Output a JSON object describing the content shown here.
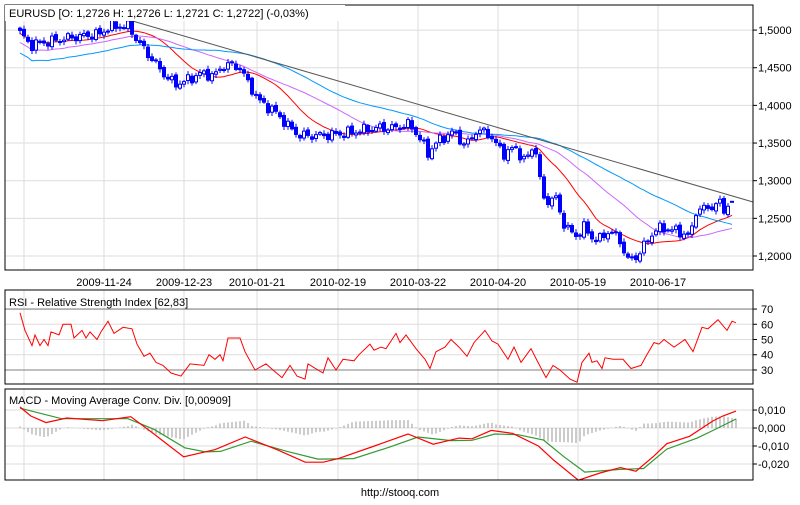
{
  "footer": "http://stooq.com",
  "chart_data": [
    {
      "type": "candlestick",
      "title": "EURUSD [O: 1,2726  H: 1,2726  L: 1,2721  C: 1,2722] (-0,03%)",
      "symbol": "EURUSD",
      "last": {
        "open": 1.2726,
        "high": 1.2726,
        "low": 1.2721,
        "close": 1.2722,
        "change_pct": -0.03
      },
      "ylim": [
        1.1814,
        1.5333
      ],
      "y_ticks": [
        "1,5000",
        "1,4500",
        "1,4000",
        "1,3500",
        "1,3000",
        "1,2500",
        "1,2000"
      ],
      "y_tick_values": [
        1.5,
        1.45,
        1.4,
        1.35,
        1.3,
        1.25,
        1.2
      ],
      "x_ticks": [
        {
          "bar": 21,
          "label": "2009-11-24"
        },
        {
          "bar": 41,
          "label": "2009-12-23"
        },
        {
          "bar": 59.25,
          "label": "2010-01-21"
        },
        {
          "bar": 79.5,
          "label": "2010-02-19"
        },
        {
          "bar": 99.5,
          "label": "2010-03-22"
        },
        {
          "bar": 119.5,
          "label": "2010-04-20"
        },
        {
          "bar": 139.5,
          "label": "2010-05-19"
        },
        {
          "bar": 159.5,
          "label": "2010-06-17"
        }
      ],
      "extra_grid_bars": [
        1
      ],
      "bar_count": 179,
      "close_keypoints": [
        [
          0,
          1.497
        ],
        [
          2.5,
          1.48
        ],
        [
          7.5,
          1.485
        ],
        [
          12.5,
          1.49
        ],
        [
          20,
          1.495
        ],
        [
          22.5,
          1.505
        ],
        [
          27.5,
          1.505
        ],
        [
          28.75,
          1.49
        ],
        [
          32.5,
          1.465
        ],
        [
          36.25,
          1.44
        ],
        [
          38.75,
          1.428
        ],
        [
          41.25,
          1.432
        ],
        [
          45,
          1.442
        ],
        [
          48.75,
          1.44
        ],
        [
          51.25,
          1.455
        ],
        [
          55,
          1.45
        ],
        [
          57,
          1.43
        ],
        [
          60,
          1.405
        ],
        [
          63.75,
          1.392
        ],
        [
          67.5,
          1.37
        ],
        [
          70,
          1.36
        ],
        [
          75,
          1.36
        ],
        [
          80,
          1.362
        ],
        [
          83.75,
          1.365
        ],
        [
          88.75,
          1.37
        ],
        [
          93.75,
          1.37
        ],
        [
          97.5,
          1.375
        ],
        [
          99.5,
          1.36
        ],
        [
          102,
          1.337
        ],
        [
          105,
          1.355
        ],
        [
          108.75,
          1.365
        ],
        [
          111.25,
          1.345
        ],
        [
          113.75,
          1.365
        ],
        [
          116.75,
          1.365
        ],
        [
          118.75,
          1.35
        ],
        [
          121.25,
          1.335
        ],
        [
          123.75,
          1.345
        ],
        [
          126.25,
          1.325
        ],
        [
          128.75,
          1.35
        ],
        [
          130,
          1.3
        ],
        [
          131.25,
          1.27
        ],
        [
          133.75,
          1.28
        ],
        [
          135.75,
          1.245
        ],
        [
          138.75,
          1.225
        ],
        [
          141.25,
          1.24
        ],
        [
          142.5,
          1.225
        ],
        [
          145,
          1.222
        ],
        [
          147.5,
          1.235
        ],
        [
          150,
          1.22
        ],
        [
          152,
          1.195
        ],
        [
          153.75,
          1.197
        ],
        [
          156.25,
          1.215
        ],
        [
          158.75,
          1.235
        ],
        [
          161.25,
          1.237
        ],
        [
          165,
          1.232
        ],
        [
          167.5,
          1.225
        ],
        [
          169,
          1.26
        ],
        [
          172.5,
          1.265
        ],
        [
          175,
          1.27
        ],
        [
          176.25,
          1.26
        ],
        [
          177.5,
          1.272
        ],
        [
          178,
          1.2722
        ]
      ],
      "moving_averages": [
        {
          "name": "MA short",
          "color": "#ff0000"
        },
        {
          "name": "MA medium",
          "color": "#cc66ff"
        },
        {
          "name": "MA long",
          "color": "#0099ff"
        }
      ],
      "trendline": {
        "from": [
          27.5,
          1.513
        ],
        "to": [
          183.25,
          1.2717
        ],
        "color": "#555555"
      },
      "candle_color": "#0000ff"
    },
    {
      "type": "line",
      "title": "RSI - Relative Strength Index [62,83]",
      "ylim": [
        20.8,
        82.5
      ],
      "y_ticks": [
        "70",
        "60",
        "50",
        "40",
        "30"
      ],
      "y_tick_values": [
        70,
        60,
        50,
        40,
        30
      ],
      "levels": [
        70,
        30
      ],
      "color": "#ff0000",
      "points": [
        [
          0,
          67.6
        ],
        [
          1.25,
          56
        ],
        [
          3,
          46
        ],
        [
          3.75,
          53
        ],
        [
          5,
          46
        ],
        [
          6,
          50
        ],
        [
          7,
          46
        ],
        [
          7.75,
          55
        ],
        [
          9.75,
          53
        ],
        [
          10.75,
          60
        ],
        [
          12.75,
          60
        ],
        [
          13.5,
          51
        ],
        [
          15.5,
          56
        ],
        [
          16.5,
          51
        ],
        [
          17.5,
          55
        ],
        [
          19.25,
          50
        ],
        [
          20.25,
          55
        ],
        [
          22,
          62
        ],
        [
          23.5,
          54
        ],
        [
          25.75,
          58
        ],
        [
          28,
          57
        ],
        [
          29.25,
          47
        ],
        [
          31,
          39
        ],
        [
          32.5,
          41
        ],
        [
          34,
          35
        ],
        [
          35.75,
          33
        ],
        [
          37.75,
          28
        ],
        [
          40.25,
          26
        ],
        [
          42.5,
          34
        ],
        [
          46,
          33
        ],
        [
          47.25,
          40
        ],
        [
          48.75,
          37
        ],
        [
          50,
          40
        ],
        [
          50.75,
          36
        ],
        [
          52,
          51
        ],
        [
          55,
          51
        ],
        [
          56.25,
          42
        ],
        [
          58.75,
          30
        ],
        [
          61.5,
          34
        ],
        [
          63.25,
          30
        ],
        [
          65.5,
          25
        ],
        [
          67.5,
          33
        ],
        [
          69.25,
          26
        ],
        [
          71.25,
          24
        ],
        [
          72,
          34
        ],
        [
          75.75,
          28
        ],
        [
          77,
          38
        ],
        [
          79,
          30
        ],
        [
          80.75,
          37
        ],
        [
          83.5,
          36
        ],
        [
          84.75,
          40
        ],
        [
          87.5,
          47
        ],
        [
          88.5,
          43
        ],
        [
          90.25,
          45
        ],
        [
          91.5,
          44
        ],
        [
          94,
          54
        ],
        [
          95,
          48
        ],
        [
          96.5,
          53
        ],
        [
          99,
          44
        ],
        [
          101.25,
          37
        ],
        [
          102.5,
          31
        ],
        [
          104,
          42
        ],
        [
          106.25,
          45
        ],
        [
          107.75,
          50
        ],
        [
          109.75,
          45
        ],
        [
          111.75,
          39
        ],
        [
          113.5,
          48
        ],
        [
          116.25,
          56
        ],
        [
          118,
          49
        ],
        [
          119.5,
          47
        ],
        [
          122,
          37
        ],
        [
          123.5,
          45
        ],
        [
          125.25,
          35
        ],
        [
          127.75,
          44
        ],
        [
          129.5,
          35
        ],
        [
          131.5,
          25
        ],
        [
          133.25,
          33
        ],
        [
          135,
          30
        ],
        [
          137.5,
          24
        ],
        [
          139.25,
          22
        ],
        [
          140.5,
          35
        ],
        [
          142.25,
          41
        ],
        [
          143,
          35
        ],
        [
          144.25,
          36
        ],
        [
          145.5,
          31
        ],
        [
          146.25,
          38
        ],
        [
          148.25,
          37
        ],
        [
          150.75,
          37
        ],
        [
          152.75,
          31
        ],
        [
          155.25,
          33
        ],
        [
          156.5,
          39
        ],
        [
          158.5,
          48
        ],
        [
          159.75,
          47
        ],
        [
          161,
          50
        ],
        [
          163.5,
          45
        ],
        [
          166.25,
          50
        ],
        [
          168.25,
          42
        ],
        [
          170.5,
          58
        ],
        [
          172,
          57
        ],
        [
          174.5,
          63
        ],
        [
          176.75,
          56
        ],
        [
          178,
          62
        ],
        [
          179,
          61
        ]
      ]
    },
    {
      "type": "line",
      "title": "MACD - Moving Average Conv. Div. [0,00909]",
      "ylim": [
        -0.0289,
        0.0217
      ],
      "y_ticks": [
        "0,010",
        "0,000",
        "-0,010",
        "-0,020"
      ],
      "y_tick_values": [
        0.01,
        0,
        -0.01,
        -0.02
      ],
      "series": [
        {
          "name": "MACD",
          "color": "#ff0000",
          "points": [
            [
              0,
              0.0117
            ],
            [
              2.7,
              0.0067
            ],
            [
              6.5,
              0.003
            ],
            [
              11.7,
              0.0056
            ],
            [
              20.6,
              0.0041
            ],
            [
              27.7,
              0.0063
            ],
            [
              33.5,
              -0.0033
            ],
            [
              40.9,
              -0.016
            ],
            [
              48.8,
              -0.012
            ],
            [
              56.3,
              -0.005
            ],
            [
              64.2,
              -0.012
            ],
            [
              71.3,
              -0.019
            ],
            [
              75.8,
              -0.019
            ],
            [
              79.6,
              -0.017
            ],
            [
              88.6,
              -0.01
            ],
            [
              97,
              -0.0033
            ],
            [
              103.3,
              -0.009
            ],
            [
              109.8,
              -0.0056
            ],
            [
              113,
              -0.006
            ],
            [
              117.8,
              -0.0013
            ],
            [
              123.2,
              -0.003
            ],
            [
              129.6,
              -0.01
            ],
            [
              133.5,
              -0.018
            ],
            [
              139.6,
              -0.029
            ],
            [
              145,
              -0.025
            ],
            [
              150.1,
              -0.022
            ],
            [
              154,
              -0.024
            ],
            [
              158.5,
              -0.0155
            ],
            [
              161.7,
              -0.0087
            ],
            [
              167.4,
              -0.0046
            ],
            [
              173.2,
              0.0039
            ],
            [
              175.7,
              0.0067
            ],
            [
              179,
              0.0094
            ]
          ]
        },
        {
          "name": "Signal",
          "color": "#339933",
          "points": [
            [
              0,
              0.011
            ],
            [
              10.4,
              0.0052
            ],
            [
              27,
              0.0052
            ],
            [
              33.5,
              -0.0007
            ],
            [
              41.2,
              -0.011
            ],
            [
              46.3,
              -0.0133
            ],
            [
              50.1,
              -0.013
            ],
            [
              57.8,
              -0.0073
            ],
            [
              66.8,
              -0.013
            ],
            [
              74.5,
              -0.0173
            ],
            [
              83.4,
              -0.017
            ],
            [
              92.4,
              -0.0106
            ],
            [
              99.5,
              -0.005
            ],
            [
              107.8,
              -0.007
            ],
            [
              113,
              -0.0068
            ],
            [
              118.7,
              -0.0033
            ],
            [
              124.5,
              -0.0037
            ],
            [
              130.9,
              -0.0067
            ],
            [
              136,
              -0.016
            ],
            [
              141.2,
              -0.0245
            ],
            [
              150.1,
              -0.023
            ],
            [
              155.9,
              -0.0225
            ],
            [
              161.7,
              -0.0117
            ],
            [
              169.3,
              -0.0056
            ],
            [
              174.5,
              0
            ],
            [
              179,
              0.005
            ]
          ]
        }
      ],
      "histogram_color": "#999999"
    }
  ]
}
